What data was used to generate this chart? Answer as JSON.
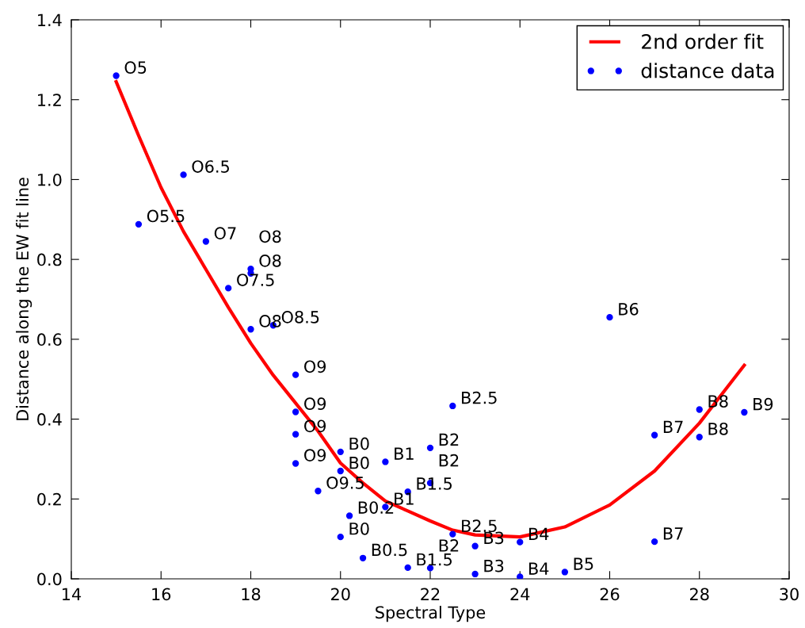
{
  "chart_data": {
    "type": "scatter",
    "xlabel": "Spectral Type",
    "ylabel": "Distance along the EW fit line",
    "xlim": [
      14,
      30
    ],
    "ylim": [
      0,
      1.4
    ],
    "xticks": [
      14,
      16,
      18,
      20,
      22,
      24,
      26,
      28,
      30
    ],
    "yticks": [
      {
        "value": 0,
        "label": "0.0"
      },
      0.2,
      0.4,
      0.6,
      0.8,
      {
        "value": 1,
        "label": "1.0"
      },
      1.2,
      1.4
    ],
    "grid": false,
    "legend": "top right",
    "series": [
      {
        "name": "2nd order fit",
        "type": "line",
        "color": "#ff0000",
        "marker": "none",
        "line_style": "solid",
        "x": [
          15,
          15.5,
          16,
          16.5,
          17,
          17.5,
          18,
          18.5,
          19,
          19.5,
          20,
          20.5,
          21,
          21.5,
          22,
          22.5,
          23,
          24,
          25,
          26,
          27,
          28,
          29
        ],
        "values": [
          1.245,
          1.11,
          0.98,
          0.87,
          0.775,
          0.68,
          0.59,
          0.51,
          0.44,
          0.37,
          0.29,
          0.24,
          0.195,
          0.17,
          0.145,
          0.122,
          0.11,
          0.105,
          0.13,
          0.185,
          0.27,
          0.39,
          0.535
        ]
      },
      {
        "name": "distance data",
        "color": "#0000ff",
        "marker": "circle",
        "x": [
          15,
          15.5,
          16.5,
          17,
          18,
          18,
          17.5,
          18,
          18.5,
          19,
          19,
          19,
          19,
          19.5,
          20,
          20,
          20,
          20.2,
          20.5,
          21,
          21,
          21.5,
          21.5,
          22,
          22,
          22,
          22.5,
          22.5,
          23,
          23,
          24,
          24,
          25,
          26,
          27,
          27,
          28,
          28,
          29
        ],
        "values": [
          1.26,
          0.888,
          1.012,
          0.845,
          0.776,
          0.765,
          0.728,
          0.625,
          0.635,
          0.511,
          0.418,
          0.362,
          0.289,
          0.22,
          0.318,
          0.27,
          0.105,
          0.158,
          0.052,
          0.293,
          0.18,
          0.218,
          0.028,
          0.328,
          0.24,
          0.027,
          0.433,
          0.112,
          0.082,
          0.012,
          0.092,
          0.005,
          0.017,
          0.655,
          0.36,
          0.093,
          0.424,
          0.355,
          0.417
        ]
      }
    ],
    "annotations": [
      {
        "text": "O5",
        "x": 15,
        "y": 1.26
      },
      {
        "text": "O5.5",
        "x": 15.5,
        "y": 0.888
      },
      {
        "text": "O6.5",
        "x": 16.5,
        "y": 1.012
      },
      {
        "text": "O7",
        "x": 17,
        "y": 0.845
      },
      {
        "text": "O8",
        "x": 18,
        "y": 0.776
      },
      {
        "text": "O8",
        "x": 18,
        "y": 0.765
      },
      {
        "text": "O7.5",
        "x": 17.5,
        "y": 0.728
      },
      {
        "text": "O8",
        "x": 18,
        "y": 0.625
      },
      {
        "text": "O8.5",
        "x": 18.5,
        "y": 0.635
      },
      {
        "text": "O9",
        "x": 19,
        "y": 0.511
      },
      {
        "text": "O9",
        "x": 19,
        "y": 0.418
      },
      {
        "text": "O9",
        "x": 19,
        "y": 0.362
      },
      {
        "text": "O9",
        "x": 19,
        "y": 0.289
      },
      {
        "text": "O9.5",
        "x": 19.5,
        "y": 0.22
      },
      {
        "text": "B0",
        "x": 20,
        "y": 0.318
      },
      {
        "text": "B0",
        "x": 20,
        "y": 0.27
      },
      {
        "text": "B0",
        "x": 20,
        "y": 0.105
      },
      {
        "text": "B0.2",
        "x": 20.2,
        "y": 0.158
      },
      {
        "text": "B0.5",
        "x": 20.5,
        "y": 0.052
      },
      {
        "text": "B1",
        "x": 21,
        "y": 0.293
      },
      {
        "text": "B1",
        "x": 21,
        "y": 0.18
      },
      {
        "text": "B1.5",
        "x": 21.5,
        "y": 0.218
      },
      {
        "text": "B1.5",
        "x": 21.5,
        "y": 0.028
      },
      {
        "text": "B2",
        "x": 22,
        "y": 0.328
      },
      {
        "text": "B2",
        "x": 22,
        "y": 0.24
      },
      {
        "text": "B2",
        "x": 22,
        "y": 0.027
      },
      {
        "text": "B2.5",
        "x": 22.5,
        "y": 0.433
      },
      {
        "text": "B2.5",
        "x": 22.5,
        "y": 0.112
      },
      {
        "text": "B3",
        "x": 23,
        "y": 0.082
      },
      {
        "text": "B3",
        "x": 23,
        "y": 0.012
      },
      {
        "text": "B4",
        "x": 24,
        "y": 0.092
      },
      {
        "text": "B4",
        "x": 24,
        "y": 0.005
      },
      {
        "text": "B5",
        "x": 25,
        "y": 0.017
      },
      {
        "text": "B6",
        "x": 26,
        "y": 0.655
      },
      {
        "text": "B7",
        "x": 27,
        "y": 0.36
      },
      {
        "text": "B7",
        "x": 27,
        "y": 0.093
      },
      {
        "text": "B8",
        "x": 28,
        "y": 0.424
      },
      {
        "text": "B8",
        "x": 28,
        "y": 0.355
      },
      {
        "text": "B9",
        "x": 29,
        "y": 0.417
      }
    ]
  }
}
